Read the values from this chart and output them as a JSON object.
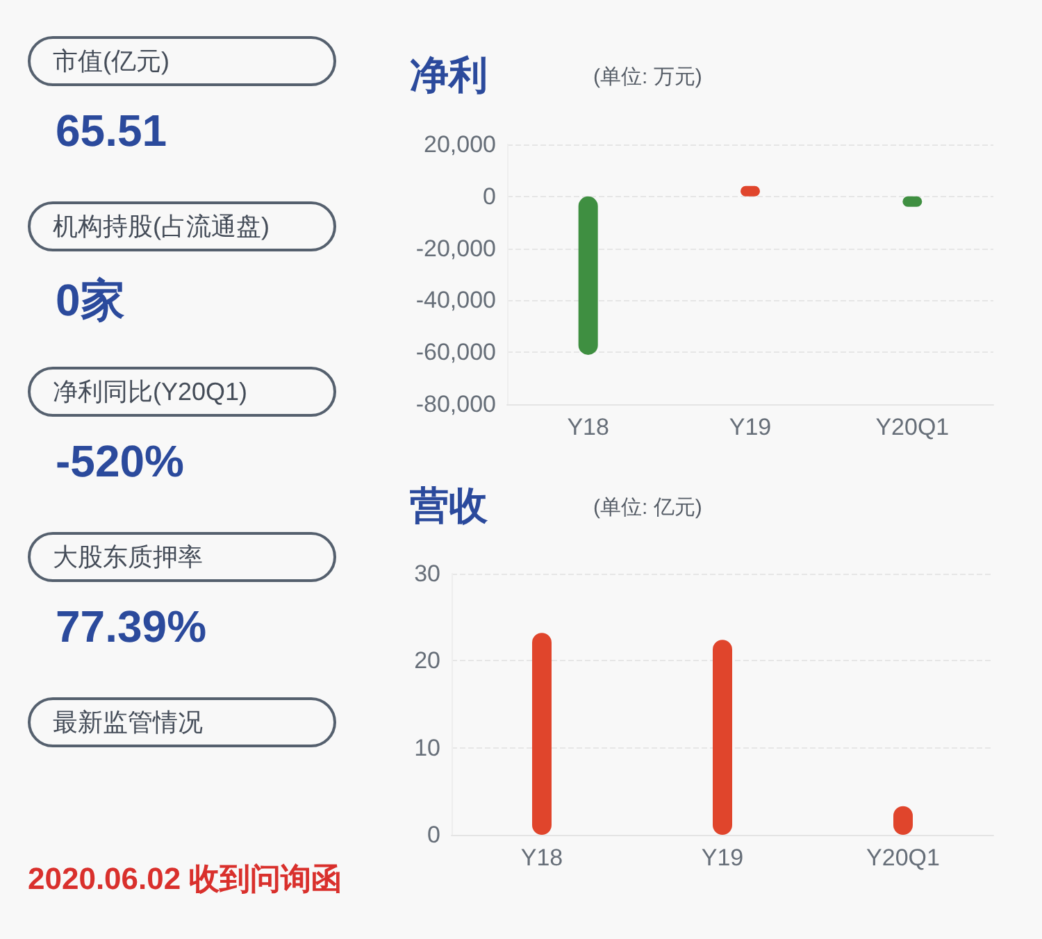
{
  "chart_data": [
    {
      "type": "other",
      "annotations": [
        "市值(亿元)",
        "65.51",
        "机构持股(占流通盘)",
        "0家",
        "净利同比(Y20Q1)",
        "-520%",
        "大股东质押率",
        "77.39%",
        "最新监管情况",
        "2020.06.02 收到问询函"
      ]
    },
    {
      "type": "bar",
      "title": "净利",
      "subtitle": "(单位: 万元)",
      "categories": [
        "Y18",
        "Y19",
        "Y20Q1"
      ],
      "values": [
        -61000,
        4000,
        -4000
      ],
      "colors": [
        "#3f8f41",
        "#e0452c",
        "#3f8f41"
      ],
      "ylim": [
        -80000,
        20000
      ],
      "yticks": [
        {
          "value": -80000,
          "label": "-80,000"
        },
        {
          "value": -60000,
          "label": "-60,000"
        },
        {
          "value": -40000,
          "label": "-40,000"
        },
        {
          "value": -20000,
          "label": "-20,000"
        },
        0,
        {
          "value": 20000,
          "label": "20,000"
        }
      ],
      "grid": "y"
    },
    {
      "type": "bar",
      "title": "营收",
      "subtitle": "(单位: 亿元)",
      "categories": [
        "Y18",
        "Y19",
        "Y20Q1"
      ],
      "values": [
        23.2,
        22.4,
        3.3
      ],
      "colors": [
        "#e0452c",
        "#e0452c",
        "#e0452c"
      ],
      "ylim": [
        0,
        30
      ],
      "yticks": [
        0,
        10,
        20,
        30
      ],
      "grid": "y"
    }
  ]
}
